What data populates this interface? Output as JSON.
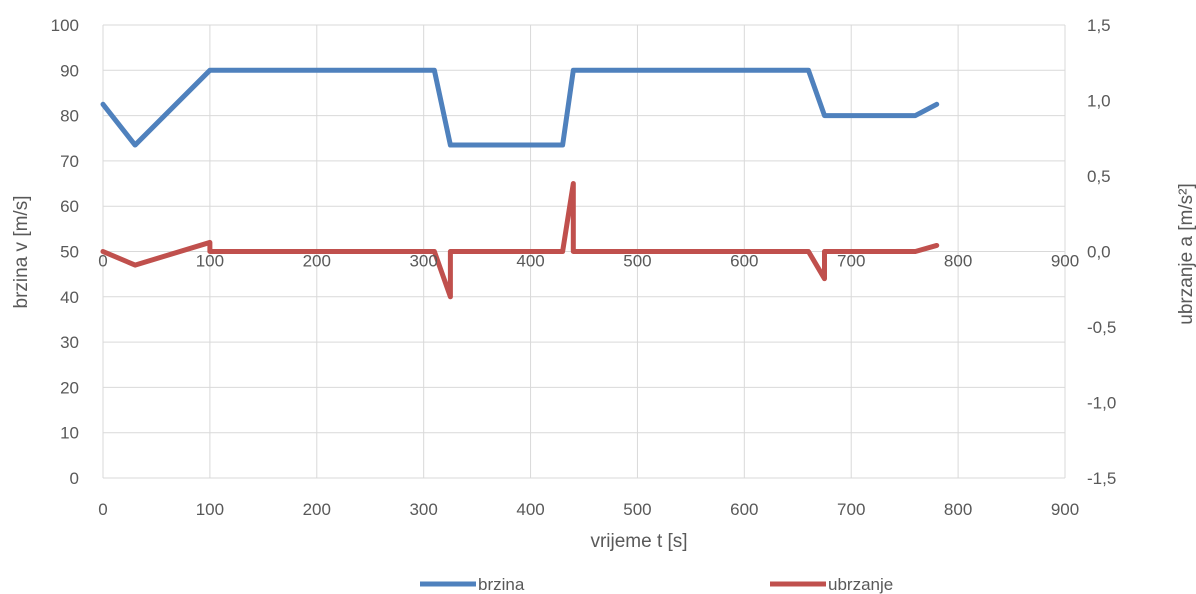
{
  "chart_data": {
    "type": "line",
    "xlabel": "vrijeme t [s]",
    "ylabel_left": "brzina v [m/s]",
    "ylabel_right": "ubrzanje a [m/s²]",
    "xlim": [
      0,
      900
    ],
    "x_ticks": [
      "0",
      "100",
      "200",
      "300",
      "400",
      "500",
      "600",
      "700",
      "800",
      "900"
    ],
    "ylim_left": [
      0,
      100
    ],
    "y_left_ticks": [
      "0",
      "10",
      "20",
      "30",
      "40",
      "50",
      "60",
      "70",
      "80",
      "90",
      "100"
    ],
    "ylim_right": [
      -1.5,
      1.5
    ],
    "y_right_ticks": [
      "-1,5",
      "-1,0",
      "-0,5",
      "0,0",
      "0,5",
      "1,0",
      "1,5"
    ],
    "secondary_x_labels_at_zero": true,
    "grid": true,
    "legend": "bottom",
    "series": [
      {
        "name": "brzina",
        "axis": "left",
        "color": "#4f81bd",
        "points": [
          [
            0,
            82.5
          ],
          [
            30,
            73.5
          ],
          [
            100,
            90
          ],
          [
            310,
            90
          ],
          [
            325,
            73.5
          ],
          [
            430,
            73.5
          ],
          [
            440,
            90
          ],
          [
            660,
            90
          ],
          [
            675,
            80
          ],
          [
            760,
            80
          ],
          [
            780,
            82.5
          ]
        ]
      },
      {
        "name": "ubrzanje",
        "axis": "right",
        "color": "#c0504d",
        "points": [
          [
            0,
            0.0
          ],
          [
            30,
            -0.09
          ],
          [
            100,
            0.06
          ],
          [
            100,
            0.0
          ],
          [
            310,
            0.0
          ],
          [
            325,
            -0.3
          ],
          [
            325,
            0.0
          ],
          [
            430,
            0.0
          ],
          [
            440,
            0.45
          ],
          [
            440,
            0.0
          ],
          [
            660,
            0.0
          ],
          [
            675,
            -0.18
          ],
          [
            675,
            0.0
          ],
          [
            760,
            0.0
          ],
          [
            780,
            0.04
          ]
        ]
      }
    ]
  }
}
